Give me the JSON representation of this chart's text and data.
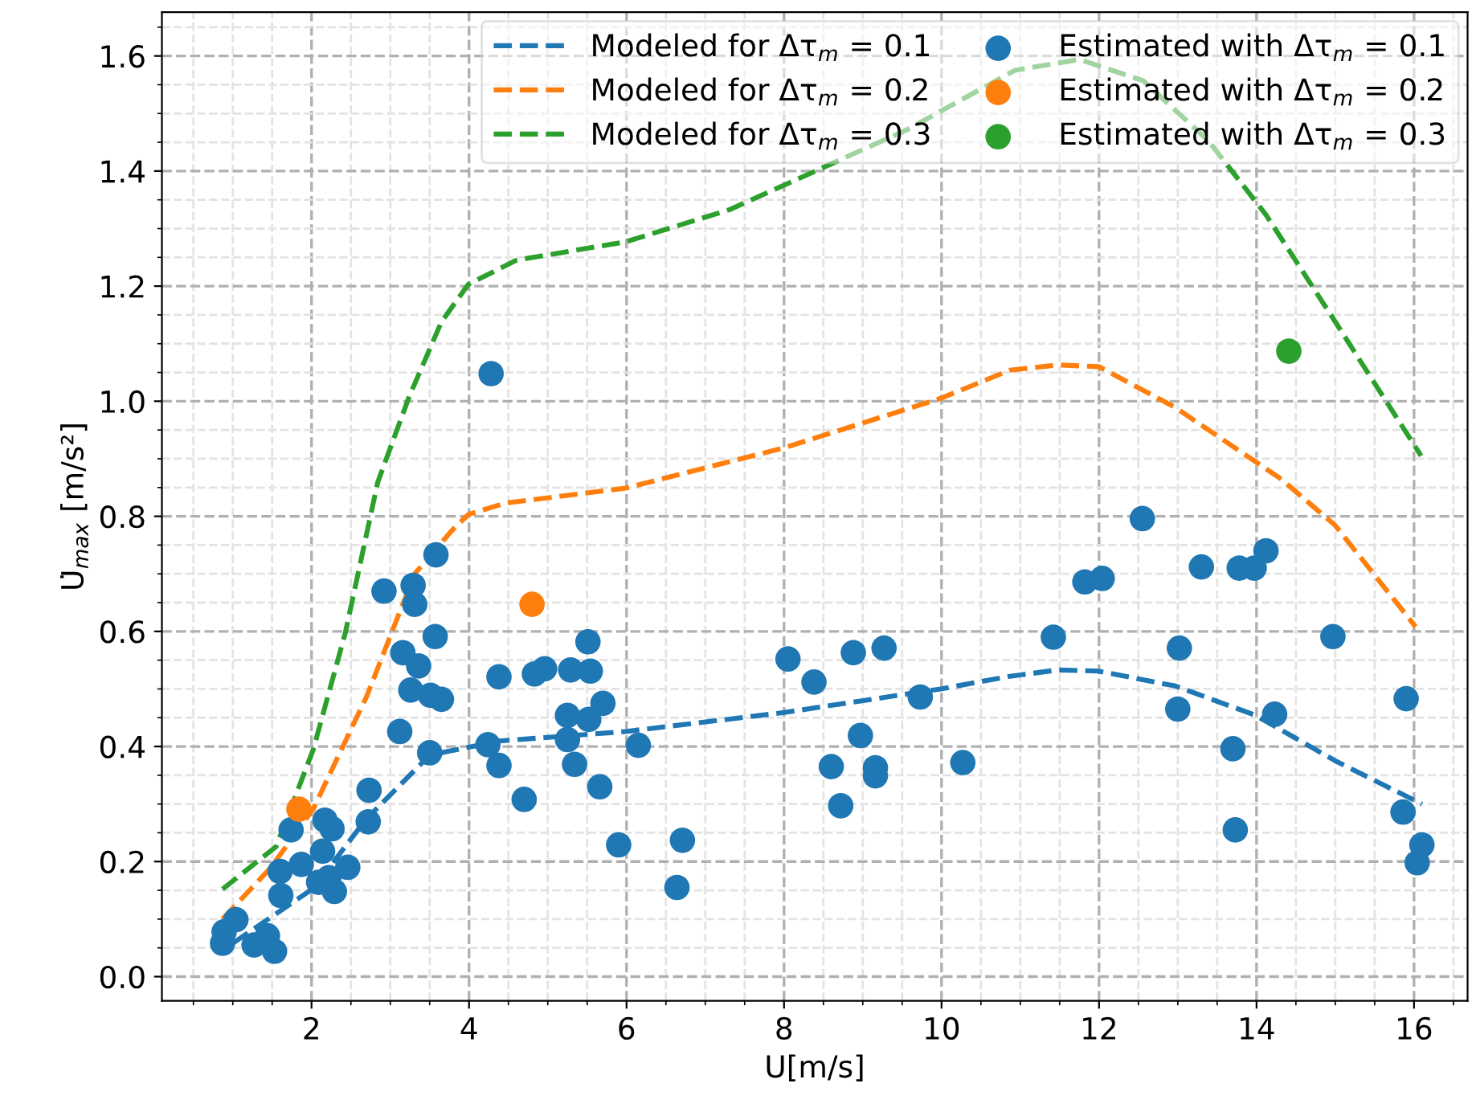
{
  "chart_data": {
    "type": "scatter",
    "xlabel": "U[m/s]",
    "ylabel": "U̇$_{max}$ [m/s²]",
    "xlim": [
      0.1,
      16.68
    ],
    "ylim": [
      -0.042,
      1.676
    ],
    "xticks": [
      2,
      4,
      6,
      8,
      10,
      12,
      14,
      16
    ],
    "yticks": [
      {
        "value": 0,
        "label": "0.0"
      },
      {
        "value": 0.2,
        "label": "0.2"
      },
      {
        "value": 0.4,
        "label": "0.4"
      },
      {
        "value": 0.6,
        "label": "0.6"
      },
      {
        "value": 0.8,
        "label": "0.8"
      },
      {
        "value": 1.0,
        "label": "1.0"
      },
      {
        "value": 1.2,
        "label": "1.2"
      },
      {
        "value": 1.4,
        "label": "1.4"
      },
      {
        "value": 1.6,
        "label": "1.6"
      }
    ],
    "grid": true,
    "legend": "top right",
    "series": [
      {
        "name": "Modeled for Δτ$_{m}$ = 0.1",
        "type": "line",
        "line_style": "dashed",
        "marker": "none",
        "color": "#1f77b4",
        "x": [
          1.0,
          2.02,
          2.69,
          3.5,
          3.75,
          4.19,
          4.24,
          5.99,
          8.0,
          9.99,
          10.87,
          11.48,
          11.99,
          12.97,
          13.99,
          15.0,
          16.1
        ],
        "values": [
          0.058,
          0.153,
          0.273,
          0.385,
          0.392,
          0.404,
          0.408,
          0.426,
          0.459,
          0.5,
          0.522,
          0.533,
          0.531,
          0.505,
          0.454,
          0.375,
          0.3
        ]
      },
      {
        "name": "Modeled for Δτ$_{m}$ = 0.2",
        "type": "line",
        "line_style": "dashed",
        "marker": "none",
        "color": "#ff7f0e",
        "x": [
          0.87,
          1.48,
          2.02,
          2.7,
          3.31,
          3.78,
          3.99,
          4.46,
          5.99,
          8.0,
          9.99,
          10.87,
          11.48,
          12.0,
          12.97,
          14.32,
          15.0,
          16.02
        ],
        "values": [
          0.1,
          0.189,
          0.291,
          0.487,
          0.7,
          0.775,
          0.803,
          0.823,
          0.849,
          0.919,
          1.005,
          1.054,
          1.063,
          1.06,
          0.989,
          0.864,
          0.784,
          0.608
        ]
      },
      {
        "name": "Modeled for Δτ$_{m}$ = 0.3",
        "type": "line",
        "line_style": "dashed",
        "marker": "none",
        "color": "#2ca02c",
        "x": [
          0.87,
          1.55,
          2.02,
          2.43,
          2.84,
          3.24,
          3.65,
          3.99,
          4.6,
          5.99,
          7.31,
          8.22,
          9.58,
          10.93,
          11.75,
          12.56,
          13.38,
          14.12,
          15.0,
          16.09
        ],
        "values": [
          0.152,
          0.226,
          0.394,
          0.598,
          0.859,
          1.008,
          1.138,
          1.203,
          1.245,
          1.277,
          1.333,
          1.389,
          1.473,
          1.575,
          1.594,
          1.557,
          1.454,
          1.324,
          1.138,
          0.905
        ]
      },
      {
        "name": "Estimated with Δτ$_{m}$ = 0.1",
        "marker": "circle",
        "color": "#1f77b4",
        "x": [
          3.58,
          2.92,
          3.29,
          3.31,
          3.57,
          3.16,
          3.36,
          3.26,
          3.51,
          3.65,
          4.38,
          3.12,
          3.5,
          4.24,
          4.38,
          2.73,
          2.72,
          1.74,
          2.17,
          2.26,
          2.14,
          1.87,
          1.6,
          2.46,
          2.09,
          2.29,
          2.22,
          1.61,
          1.04,
          0.89,
          0.87,
          1.27,
          1.44,
          1.53,
          4.28,
          5.51,
          4.83,
          4.96,
          5.29,
          5.54,
          5.25,
          5.52,
          5.7,
          5.25,
          5.34,
          4.7,
          5.66,
          6.15,
          5.9,
          6.71,
          6.64,
          8.05,
          8.38,
          8.88,
          9.27,
          9.73,
          8.97,
          8.6,
          9.16,
          9.16,
          8.72,
          10.27,
          11.42,
          11.82,
          12.04,
          12.55,
          13.3,
          13.78,
          13.97,
          14.12,
          13.02,
          13.0,
          13.7,
          14.23,
          13.73,
          14.97,
          15.9,
          15.86,
          16.1,
          16.04
        ],
        "values": [
          0.733,
          0.67,
          0.68,
          0.647,
          0.591,
          0.563,
          0.54,
          0.498,
          0.489,
          0.482,
          0.521,
          0.426,
          0.389,
          0.403,
          0.367,
          0.324,
          0.269,
          0.255,
          0.272,
          0.257,
          0.218,
          0.195,
          0.183,
          0.19,
          0.164,
          0.148,
          0.172,
          0.141,
          0.099,
          0.078,
          0.058,
          0.055,
          0.071,
          0.044,
          1.048,
          0.582,
          0.526,
          0.535,
          0.533,
          0.531,
          0.454,
          0.447,
          0.475,
          0.412,
          0.369,
          0.308,
          0.33,
          0.402,
          0.229,
          0.237,
          0.155,
          0.552,
          0.512,
          0.563,
          0.571,
          0.486,
          0.419,
          0.365,
          0.363,
          0.349,
          0.297,
          0.372,
          0.59,
          0.686,
          0.692,
          0.796,
          0.712,
          0.71,
          0.71,
          0.74,
          0.571,
          0.465,
          0.396,
          0.456,
          0.255,
          0.591,
          0.483,
          0.286,
          0.229,
          0.198
        ]
      },
      {
        "name": "Estimated with Δτ$_{m}$ = 0.2",
        "marker": "circle",
        "color": "#ff7f0e",
        "x": [
          1.84,
          4.8
        ],
        "values": [
          0.291,
          0.647
        ]
      },
      {
        "name": "Estimated with Δτ$_{m}$ = 0.3",
        "marker": "circle",
        "color": "#2ca02c",
        "x": [
          14.41
        ],
        "values": [
          1.087
        ]
      }
    ]
  }
}
